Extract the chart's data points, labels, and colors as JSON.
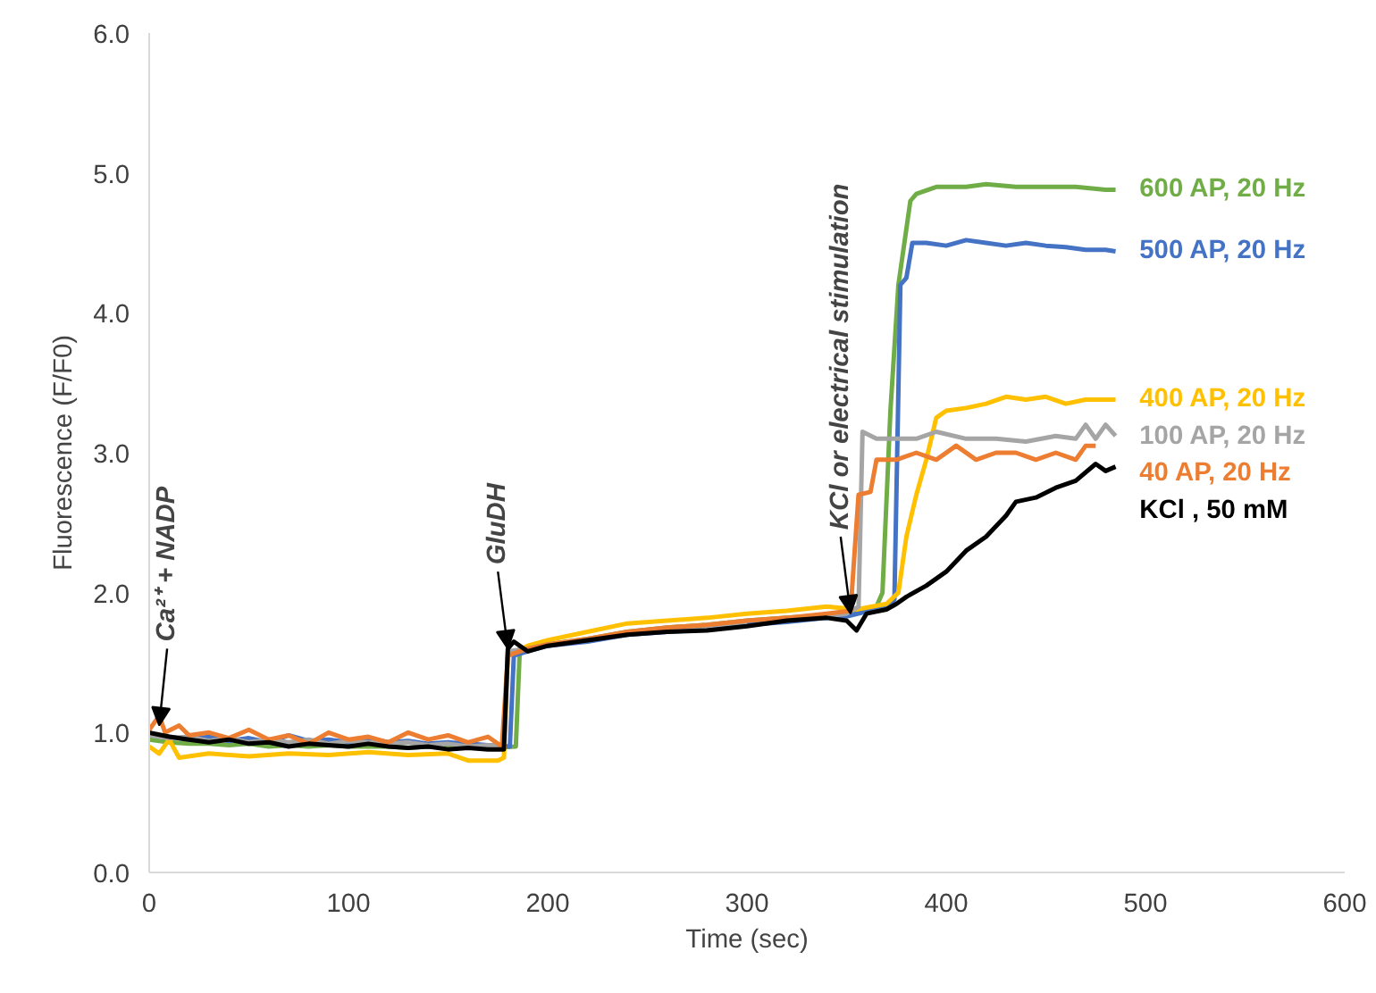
{
  "chart_data": {
    "type": "line",
    "xlabel": "Time (sec)",
    "ylabel": "Fluorescence (F/F0)",
    "xlim": [
      0,
      600
    ],
    "xticks": [
      0,
      100,
      200,
      300,
      400,
      500,
      600
    ],
    "ylim": [
      0,
      6
    ],
    "yticks": [
      {
        "value": 0,
        "label": "0.0"
      },
      {
        "value": 1,
        "label": "1.0"
      },
      {
        "value": 2,
        "label": "2.0"
      },
      {
        "value": 3,
        "label": "3.0"
      },
      {
        "value": 4,
        "label": "4.0"
      },
      {
        "value": 5,
        "label": "5.0"
      },
      {
        "value": 6,
        "label": "6.0"
      }
    ],
    "grid": false,
    "legend": false,
    "marker": "none",
    "line_style": "solid",
    "annotations": [
      {
        "text": "Ca²⁺ + NADP",
        "x": 5,
        "y": 1.05
      },
      {
        "text": "GluDH",
        "x": 180,
        "y": 1.6
      },
      {
        "text": "KCl or electrical stimulation",
        "x": 352,
        "y": 1.85
      }
    ],
    "series": [
      {
        "name": "600 AP, 20 Hz",
        "color": "#70ad47",
        "x": [
          0,
          10,
          20,
          30,
          40,
          50,
          60,
          70,
          80,
          90,
          100,
          110,
          120,
          130,
          140,
          150,
          160,
          170,
          184,
          186,
          190,
          200,
          220,
          240,
          260,
          280,
          300,
          320,
          340,
          350,
          365,
          368,
          372,
          376,
          382,
          385,
          395,
          410,
          420,
          435,
          450,
          465,
          480,
          485
        ],
        "values": [
          0.95,
          0.93,
          0.92,
          0.92,
          0.91,
          0.92,
          0.9,
          0.91,
          0.9,
          0.91,
          0.9,
          0.9,
          0.9,
          0.89,
          0.9,
          0.89,
          0.89,
          0.89,
          0.9,
          1.6,
          1.6,
          1.63,
          1.67,
          1.72,
          1.75,
          1.77,
          1.8,
          1.82,
          1.84,
          1.85,
          1.9,
          2.0,
          3.3,
          4.2,
          4.8,
          4.85,
          4.9,
          4.9,
          4.92,
          4.9,
          4.9,
          4.9,
          4.88,
          4.88
        ]
      },
      {
        "name": "500 AP, 20 Hz",
        "color": "#4472c4",
        "x": [
          0,
          10,
          20,
          30,
          40,
          50,
          60,
          70,
          80,
          90,
          100,
          110,
          120,
          130,
          140,
          150,
          160,
          170,
          181,
          183,
          190,
          200,
          220,
          240,
          260,
          280,
          300,
          320,
          340,
          350,
          370,
          374,
          377,
          380,
          383,
          390,
          400,
          410,
          420,
          430,
          440,
          450,
          460,
          470,
          480,
          485
        ],
        "values": [
          0.98,
          0.97,
          0.95,
          0.97,
          0.94,
          0.96,
          0.93,
          0.98,
          0.94,
          0.95,
          0.93,
          0.96,
          0.93,
          0.94,
          0.92,
          0.93,
          0.92,
          0.91,
          0.9,
          1.55,
          1.58,
          1.62,
          1.65,
          1.7,
          1.72,
          1.74,
          1.77,
          1.79,
          1.82,
          1.83,
          1.9,
          1.95,
          4.2,
          4.25,
          4.5,
          4.5,
          4.48,
          4.52,
          4.5,
          4.48,
          4.5,
          4.48,
          4.47,
          4.45,
          4.45,
          4.44
        ]
      },
      {
        "name": "400 AP, 20 Hz",
        "color": "#ffc000",
        "x": [
          0,
          5,
          10,
          15,
          30,
          50,
          70,
          90,
          110,
          130,
          150,
          160,
          175,
          178,
          180,
          190,
          200,
          220,
          240,
          260,
          280,
          300,
          320,
          340,
          355,
          370,
          376,
          380,
          385,
          390,
          395,
          400,
          410,
          420,
          430,
          440,
          450,
          460,
          470,
          485
        ],
        "values": [
          0.9,
          0.85,
          0.95,
          0.82,
          0.85,
          0.83,
          0.85,
          0.84,
          0.86,
          0.84,
          0.85,
          0.8,
          0.8,
          0.82,
          1.55,
          1.62,
          1.66,
          1.72,
          1.78,
          1.8,
          1.82,
          1.85,
          1.87,
          1.9,
          1.88,
          1.92,
          2.0,
          2.4,
          2.7,
          2.95,
          3.25,
          3.3,
          3.32,
          3.35,
          3.4,
          3.38,
          3.4,
          3.35,
          3.38,
          3.38
        ]
      },
      {
        "name": "100 AP, 20 Hz",
        "color": "#a5a5a5",
        "x": [
          0,
          10,
          20,
          30,
          40,
          50,
          60,
          70,
          80,
          90,
          100,
          110,
          120,
          130,
          140,
          150,
          160,
          170,
          178,
          180,
          190,
          200,
          220,
          240,
          260,
          280,
          300,
          320,
          340,
          350,
          356,
          358,
          365,
          375,
          385,
          395,
          410,
          425,
          440,
          455,
          465,
          470,
          475,
          480,
          485
        ],
        "values": [
          0.98,
          0.96,
          0.97,
          0.94,
          0.96,
          0.93,
          0.95,
          0.93,
          0.95,
          0.92,
          0.94,
          0.93,
          0.92,
          0.93,
          0.91,
          0.92,
          0.9,
          0.91,
          0.9,
          1.58,
          1.6,
          1.63,
          1.67,
          1.71,
          1.74,
          1.76,
          1.79,
          null,
          1.83,
          1.85,
          1.9,
          3.15,
          3.1,
          3.1,
          3.1,
          3.15,
          3.1,
          3.1,
          3.08,
          3.12,
          3.1,
          3.2,
          3.1,
          3.2,
          3.12
        ]
      },
      {
        "name": "40 AP, 20 Hz",
        "color": "#ed7d31",
        "x": [
          0,
          5,
          8,
          15,
          20,
          30,
          40,
          50,
          60,
          70,
          80,
          90,
          100,
          110,
          120,
          130,
          140,
          150,
          160,
          170,
          177,
          180,
          190,
          200,
          220,
          240,
          260,
          280,
          300,
          320,
          340,
          352,
          356,
          362,
          365,
          375,
          385,
          395,
          405,
          415,
          425,
          435,
          445,
          455,
          465,
          470,
          475
        ],
        "values": [
          1.02,
          1.12,
          1.0,
          1.05,
          0.98,
          1.0,
          0.96,
          1.02,
          0.95,
          0.98,
          0.92,
          1.0,
          0.95,
          0.97,
          0.93,
          1.0,
          0.95,
          0.98,
          0.93,
          0.97,
          0.9,
          1.55,
          1.6,
          1.63,
          1.67,
          1.72,
          1.75,
          1.77,
          1.8,
          1.82,
          1.85,
          1.87,
          2.7,
          2.72,
          2.95,
          2.95,
          3.0,
          2.95,
          3.05,
          2.95,
          3.0,
          3.0,
          2.95,
          3.0,
          2.95,
          3.05,
          3.05
        ]
      },
      {
        "name": "KCl , 50 mM",
        "color": "#000000",
        "x": [
          0,
          10,
          20,
          30,
          40,
          50,
          60,
          70,
          80,
          90,
          100,
          110,
          120,
          130,
          140,
          150,
          160,
          170,
          178,
          180,
          183,
          190,
          200,
          220,
          240,
          260,
          280,
          300,
          320,
          340,
          350,
          355,
          360,
          370,
          375,
          380,
          390,
          400,
          410,
          420,
          430,
          435,
          445,
          455,
          465,
          475,
          480,
          485
        ],
        "values": [
          1.0,
          0.97,
          0.95,
          0.93,
          0.95,
          0.92,
          0.93,
          0.9,
          0.92,
          0.91,
          0.9,
          0.92,
          0.9,
          0.89,
          0.9,
          0.88,
          0.89,
          0.88,
          0.88,
          1.6,
          1.65,
          1.58,
          1.62,
          1.66,
          1.7,
          1.72,
          1.73,
          1.76,
          1.8,
          1.82,
          1.8,
          1.73,
          1.85,
          1.88,
          1.92,
          1.97,
          2.05,
          2.15,
          2.3,
          2.4,
          2.55,
          2.65,
          2.68,
          2.75,
          2.8,
          2.92,
          2.87,
          2.9
        ]
      }
    ]
  }
}
